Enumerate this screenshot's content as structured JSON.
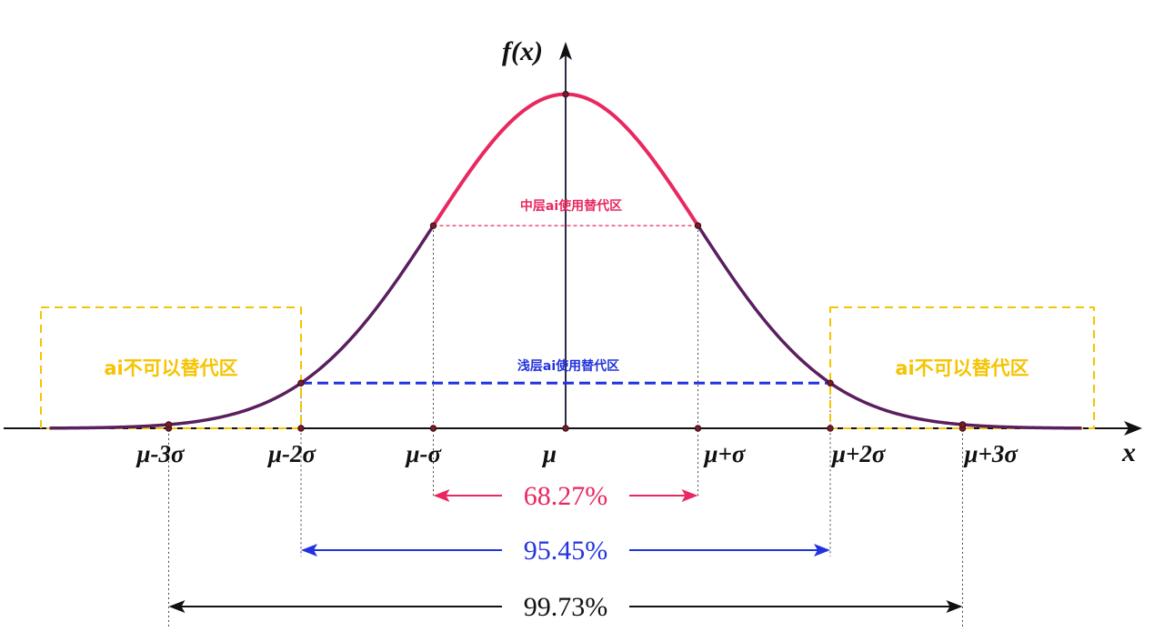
{
  "chart_data": {
    "type": "line",
    "title": "",
    "xlabel": "x",
    "ylabel": "f(x)",
    "xlim": [
      -4,
      4.2
    ],
    "ylim": [
      0,
      0.44
    ],
    "grid": false,
    "legend": "none",
    "x_ticks": [
      {
        "x": -3,
        "label": "μ-3σ"
      },
      {
        "x": -2,
        "label": "μ-2σ"
      },
      {
        "x": -1,
        "label": "μ-σ"
      },
      {
        "x": 0,
        "label": "μ"
      },
      {
        "x": 1,
        "label": "μ+σ"
      },
      {
        "x": 2,
        "label": "μ+2σ"
      },
      {
        "x": 3,
        "label": "μ+3σ"
      }
    ],
    "series": [
      {
        "x": [
          -3.9,
          -3.5,
          -3,
          -2.5,
          -2,
          -1.5,
          -1,
          -0.5,
          0,
          0.5,
          1,
          1.5,
          2,
          2.5,
          3,
          3.5,
          3.9
        ],
        "y": [
          0.0002,
          0.0009,
          0.0044,
          0.0175,
          0.054,
          0.1295,
          0.242,
          0.3521,
          0.3989,
          0.3521,
          0.242,
          0.1295,
          0.054,
          0.0175,
          0.0044,
          0.0009,
          0.0002
        ]
      }
    ],
    "intervals": [
      {
        "from": -1,
        "to": 1,
        "label": "68.27%",
        "color": "#e8285f"
      },
      {
        "from": -2,
        "to": 2,
        "label": "95.45%",
        "color": "#2233dd"
      },
      {
        "from": -3,
        "to": 3,
        "label": "99.73%",
        "color": "#111111"
      }
    ],
    "annotations": {
      "middle_band": {
        "label": "中层ai使用替代区",
        "color": "#e8285f"
      },
      "shallow_band": {
        "label": "浅层ai使用替代区",
        "color": "#2233dd"
      },
      "left_zone": {
        "label": "ai不可以替代区",
        "color": "#f5c400"
      },
      "right_zone": {
        "label": "ai不可以替代区",
        "color": "#f5c400"
      }
    },
    "colors": {
      "center_curve": "#e8285f",
      "tail_curve": "#5a1f5e",
      "axis": "#111111"
    }
  }
}
